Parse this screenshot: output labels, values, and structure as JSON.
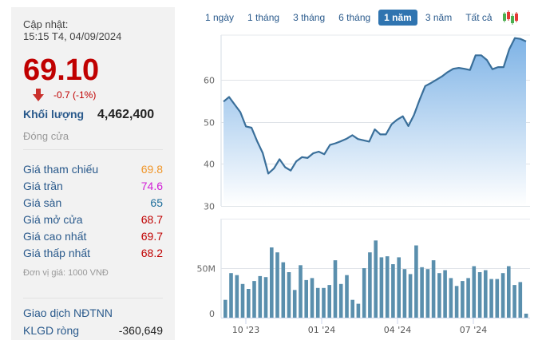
{
  "quote": {
    "updated_label": "Cập nhật:",
    "updated_time": "15:15 T4, 04/09/2024",
    "price": "69.10",
    "change": "-0.7 (-1%)",
    "direction_icon": "arrow-down-icon",
    "volume_label": "Khối lượng",
    "volume_value": "4,462,400",
    "status": "Đóng cửa",
    "colors": {
      "down": "#c00000",
      "label": "#2a5a8c"
    }
  },
  "stats": [
    {
      "label": "Giá tham chiếu",
      "value": "69.8",
      "color": "#f0962a"
    },
    {
      "label": "Giá trần",
      "value": "74.6",
      "color": "#d11fd6"
    },
    {
      "label": "Giá sàn",
      "value": "65",
      "color": "#1b6c9a"
    },
    {
      "label": "Giá mở cửa",
      "value": "68.7",
      "color": "#c00000"
    },
    {
      "label": "Giá cao nhất",
      "value": "69.7",
      "color": "#c00000"
    },
    {
      "label": "Giá thấp nhất",
      "value": "68.2",
      "color": "#c00000"
    }
  ],
  "unit_note": "Đơn vị giá: 1000 VNĐ",
  "foreign": {
    "title": "Giao dịch NĐTNN",
    "net_label": "KLGD ròng",
    "net_value": "-360,649"
  },
  "range_tabs": [
    {
      "label": "1 ngày",
      "active": false
    },
    {
      "label": "1 tháng",
      "active": false
    },
    {
      "label": "3 tháng",
      "active": false
    },
    {
      "label": "6 tháng",
      "active": false
    },
    {
      "label": "1 năm",
      "active": true
    },
    {
      "label": "3 năm",
      "active": false
    },
    {
      "label": "Tất cả",
      "active": false
    }
  ],
  "chart_data": [
    {
      "type": "area",
      "title": "",
      "xlabel": "",
      "ylabel": "",
      "ylim": [
        30,
        70
      ],
      "yticks": [
        30,
        40,
        50,
        60
      ],
      "grid": true,
      "legend": "none",
      "values": [
        54.8,
        55.9,
        54.1,
        52.3,
        48.9,
        48.6,
        45.4,
        42.6,
        37.7,
        38.9,
        41.1,
        39.2,
        38.4,
        40.6,
        41.6,
        41.4,
        42.5,
        42.9,
        42.3,
        44.5,
        44.9,
        45.4,
        46.0,
        46.8,
        45.9,
        45.6,
        45.3,
        48.2,
        47.0,
        47.0,
        49.4,
        50.5,
        51.3,
        49.0,
        51.6,
        55.2,
        58.5,
        59.2,
        60.0,
        60.8,
        61.8,
        62.6,
        62.8,
        62.6,
        62.3,
        65.8,
        65.8,
        64.7,
        62.5,
        63.0,
        63.0,
        67.2,
        69.9,
        69.7,
        69.1
      ],
      "stroke": "#3a6f9a",
      "fill_top": "#7eb3e6",
      "fill_bottom": "#ffffff"
    },
    {
      "type": "bar",
      "title": "",
      "xlabel": "",
      "ylabel": "",
      "ylim": [
        0,
        100
      ],
      "yticks": [
        "0",
        "50M"
      ],
      "categories_ticks": [
        "10 '23",
        "01 '24",
        "04 '24",
        "07 '24"
      ],
      "values": [
        18,
        45,
        43,
        34,
        29,
        37,
        42,
        41,
        71,
        66,
        56,
        46,
        28,
        53,
        38,
        40,
        30,
        30,
        33,
        58,
        34,
        43,
        18,
        14,
        50,
        66,
        78,
        61,
        62,
        54,
        61,
        49,
        44,
        73,
        51,
        49,
        58,
        45,
        48,
        40,
        32,
        37,
        40,
        52,
        46,
        48,
        39,
        39,
        45,
        52,
        33,
        36,
        4
      ],
      "bar_color": "#5a8fad"
    }
  ]
}
